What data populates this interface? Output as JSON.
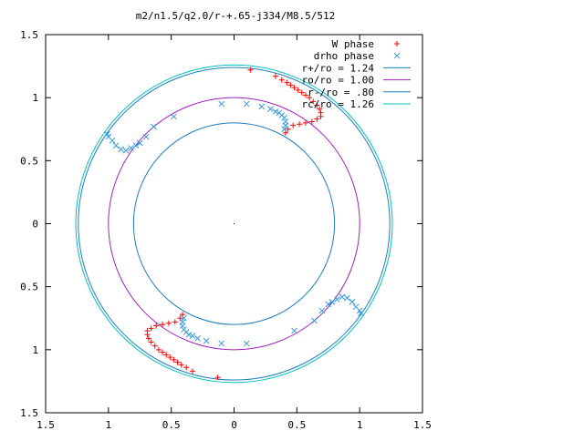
{
  "chart_data": {
    "type": "scatter",
    "title": "m2/n1.5/q2.0/r-+.65-j334/M8.5/512",
    "xlim": [
      -1.5,
      1.5
    ],
    "ylim": [
      -1.5,
      1.5
    ],
    "xtick_values": [
      -1.5,
      -1,
      -0.5,
      0,
      0.5,
      1,
      1.5
    ],
    "xtick_labels": [
      "1.5",
      "1",
      "0.5",
      "0",
      "0.5",
      "1",
      "1.5"
    ],
    "ytick_values": [
      1.5,
      1,
      0.5,
      0,
      -0.5,
      -1,
      -1.5
    ],
    "ytick_labels": [
      "1.5",
      "1",
      "0.5",
      "0",
      "0.5",
      "1",
      "1.5"
    ],
    "grid": false,
    "legend_position": "top-right",
    "circles": [
      {
        "label": "r+/ro = 1.24",
        "radius": 1.24,
        "color": "#1f7fbf"
      },
      {
        "label": "ro/ro = 1.00",
        "radius": 1.0,
        "color": "#a020c0"
      },
      {
        "label": "r-/ro = .80",
        "radius": 0.8,
        "color": "#1f7fbf"
      },
      {
        "label": "rc/ro = 1.26",
        "radius": 1.26,
        "color": "#00c0c0"
      }
    ],
    "series": [
      {
        "name": "W phase",
        "marker": "plus",
        "color": "#ff0000",
        "points": [
          [
            0.13,
            1.22
          ],
          [
            0.33,
            1.17
          ],
          [
            0.38,
            1.14
          ],
          [
            0.42,
            1.12
          ],
          [
            0.45,
            1.1
          ],
          [
            0.48,
            1.08
          ],
          [
            0.51,
            1.06
          ],
          [
            0.54,
            1.04
          ],
          [
            0.57,
            1.02
          ],
          [
            0.6,
            1.0
          ],
          [
            0.63,
            0.97
          ],
          [
            0.66,
            0.94
          ],
          [
            0.68,
            0.91
          ],
          [
            0.69,
            0.88
          ],
          [
            0.69,
            0.85
          ],
          [
            0.66,
            0.83
          ],
          [
            0.62,
            0.81
          ],
          [
            0.57,
            0.8
          ],
          [
            0.52,
            0.79
          ],
          [
            0.47,
            0.78
          ],
          [
            0.43,
            0.75
          ],
          [
            0.41,
            0.72
          ],
          [
            -0.13,
            -1.22
          ],
          [
            -0.33,
            -1.17
          ],
          [
            -0.38,
            -1.14
          ],
          [
            -0.42,
            -1.12
          ],
          [
            -0.45,
            -1.1
          ],
          [
            -0.48,
            -1.08
          ],
          [
            -0.51,
            -1.06
          ],
          [
            -0.54,
            -1.04
          ],
          [
            -0.57,
            -1.02
          ],
          [
            -0.6,
            -1.0
          ],
          [
            -0.63,
            -0.97
          ],
          [
            -0.66,
            -0.94
          ],
          [
            -0.68,
            -0.91
          ],
          [
            -0.69,
            -0.88
          ],
          [
            -0.69,
            -0.85
          ],
          [
            -0.66,
            -0.83
          ],
          [
            -0.62,
            -0.81
          ],
          [
            -0.57,
            -0.8
          ],
          [
            -0.52,
            -0.79
          ],
          [
            -0.47,
            -0.78
          ],
          [
            -0.43,
            -0.75
          ],
          [
            -0.41,
            -0.72
          ]
        ]
      },
      {
        "name": "drho phase",
        "marker": "x",
        "color": "#3399dd",
        "points": [
          [
            0.1,
            0.95
          ],
          [
            0.22,
            0.93
          ],
          [
            0.29,
            0.91
          ],
          [
            0.33,
            0.89
          ],
          [
            0.36,
            0.88
          ],
          [
            0.38,
            0.86
          ],
          [
            0.4,
            0.84
          ],
          [
            0.41,
            0.81
          ],
          [
            0.41,
            0.78
          ],
          [
            0.4,
            0.75
          ],
          [
            -0.1,
            0.95
          ],
          [
            -0.48,
            0.85
          ],
          [
            -0.64,
            0.77
          ],
          [
            -0.7,
            0.69
          ],
          [
            -0.75,
            0.64
          ],
          [
            -0.78,
            0.62
          ],
          [
            -0.82,
            0.6
          ],
          [
            -0.86,
            0.58
          ],
          [
            -0.9,
            0.59
          ],
          [
            -0.94,
            0.62
          ],
          [
            -0.97,
            0.66
          ],
          [
            -1.0,
            0.69
          ],
          [
            -1.01,
            0.71
          ],
          [
            -0.1,
            -0.95
          ],
          [
            -0.22,
            -0.93
          ],
          [
            -0.29,
            -0.91
          ],
          [
            -0.33,
            -0.89
          ],
          [
            -0.36,
            -0.88
          ],
          [
            -0.38,
            -0.86
          ],
          [
            -0.4,
            -0.84
          ],
          [
            -0.41,
            -0.81
          ],
          [
            -0.41,
            -0.78
          ],
          [
            -0.4,
            -0.75
          ],
          [
            0.1,
            -0.95
          ],
          [
            0.48,
            -0.85
          ],
          [
            0.64,
            -0.77
          ],
          [
            0.7,
            -0.69
          ],
          [
            0.75,
            -0.64
          ],
          [
            0.78,
            -0.62
          ],
          [
            0.82,
            -0.6
          ],
          [
            0.86,
            -0.58
          ],
          [
            0.9,
            -0.59
          ],
          [
            0.94,
            -0.62
          ],
          [
            0.97,
            -0.66
          ],
          [
            1.0,
            -0.69
          ],
          [
            1.01,
            -0.71
          ]
        ]
      }
    ]
  }
}
